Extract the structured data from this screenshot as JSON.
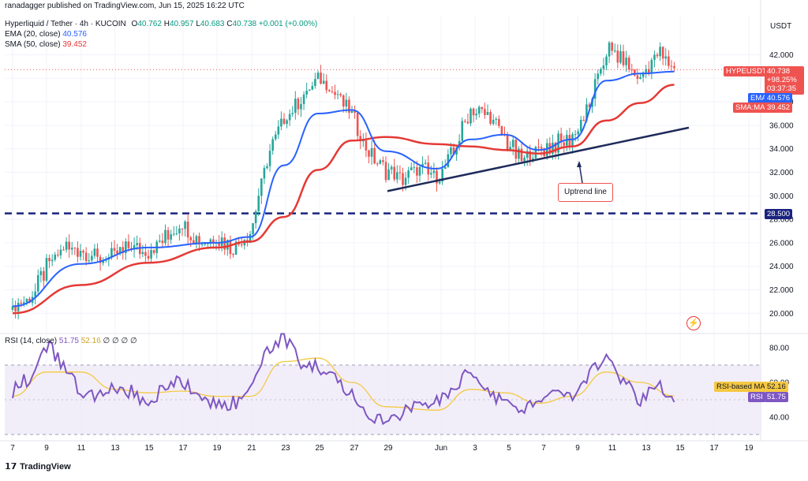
{
  "header": {
    "publisher": "ranadagger published on TradingView.com, Jun 15, 2025 16:22 UTC",
    "symbol_line": "Hyperliquid / Tether · 4h · KUCOIN",
    "ohlc": {
      "o_label": "O",
      "o": "40.762",
      "h_label": "H",
      "h": "40.957",
      "l_label": "L",
      "l": "40.683",
      "c_label": "C",
      "c": "40.738",
      "chg": "+0.001 (+0.00%)"
    },
    "ema_legend": {
      "label": "EMA (20, close)",
      "value": "40.576"
    },
    "sma_legend": {
      "label": "SMA (50, close)",
      "value": "39.452"
    },
    "rsi_legend": {
      "label": "RSI (14, close)",
      "v1": "51.75",
      "v2": "52.16",
      "rest": "∅ ∅ ∅ ∅"
    }
  },
  "price_axis": {
    "currency": "USDT",
    "ticks": [
      "42.000",
      "40.000",
      "38.000",
      "36.000",
      "34.000",
      "32.000",
      "30.000",
      "28.000",
      "26.000",
      "24.000",
      "22.000",
      "20.000"
    ]
  },
  "rsi_axis": {
    "ticks": [
      "80.00",
      "60.00",
      "40.00"
    ]
  },
  "x_axis": {
    "ticks": [
      "7",
      "9",
      "11",
      "13",
      "15",
      "17",
      "19",
      "21",
      "23",
      "25",
      "27",
      "29",
      "Jun",
      "3",
      "5",
      "7",
      "9",
      "11",
      "13",
      "15",
      "17",
      "19"
    ]
  },
  "labels": {
    "symbol_tag": "HYPEUSDT",
    "price_tag": "40.738",
    "pct_tag": "+98.25%",
    "time_tag": "03:37:35",
    "ema_tag": "EMA",
    "ema_value": "40.576",
    "sma_tag": "SMA:MA",
    "sma_value": "39.452",
    "support_value": "28.500",
    "uptrend_annotation": "Uptrend line",
    "rsi_ma_tag": "RSI-based MA",
    "rsi_ma_value": "52.16",
    "rsi_tag": "RSI",
    "rsi_value": "51.75",
    "footer": "TradingView"
  },
  "colors": {
    "up": "#26a69a",
    "down": "#ef5350",
    "ema": "#2962ff",
    "sma": "#e53935",
    "support": "#1a237e",
    "trend": "#1e2a5a",
    "rsi": "#7e57c2",
    "rsi_ma": "#f5c842",
    "band": "#ede7f6"
  },
  "chart_data": [
    {
      "type": "candlestick",
      "title": "Hyperliquid / Tether · 4h · KUCOIN",
      "ylim": [
        19,
        43.5
      ],
      "y_scale": "linear",
      "grid": true,
      "price_path": [
        [
          "May 7",
          20.3
        ],
        [
          "May 8",
          21.2
        ],
        [
          "May 9",
          23.8
        ],
        [
          "May 10",
          25.6
        ],
        [
          "May 11",
          25.4
        ],
        [
          "May 12",
          24.6
        ],
        [
          "May 13",
          24.8
        ],
        [
          "May 14",
          25.8
        ],
        [
          "May 15",
          25.2
        ],
        [
          "May 16",
          26.4
        ],
        [
          "May 17",
          27.6
        ],
        [
          "May 18",
          26.2
        ],
        [
          "May 19",
          26.5
        ],
        [
          "May 20",
          25.6
        ],
        [
          "May 21",
          26.6
        ],
        [
          "May 22",
          33.2
        ],
        [
          "May 23",
          36.8
        ],
        [
          "May 24",
          38.0
        ],
        [
          "May 25",
          40.0
        ],
        [
          "May 26",
          38.8
        ],
        [
          "May 27",
          36.8
        ],
        [
          "May 28",
          33.5
        ],
        [
          "May 29",
          32.0
        ],
        [
          "May 30",
          31.3
        ],
        [
          "May 31",
          32.3
        ],
        [
          "Jun 1",
          31.6
        ],
        [
          "Jun 2",
          33.6
        ],
        [
          "Jun 3",
          37.5
        ],
        [
          "Jun 4",
          37.0
        ],
        [
          "Jun 5",
          34.8
        ],
        [
          "Jun 6",
          33.0
        ],
        [
          "Jun 7",
          33.8
        ],
        [
          "Jun 8",
          34.3
        ],
        [
          "Jun 9",
          35.0
        ],
        [
          "Jun 10",
          37.5
        ],
        [
          "Jun 11",
          42.5
        ],
        [
          "Jun 12",
          41.5
        ],
        [
          "Jun 13",
          40.0
        ],
        [
          "Jun 14",
          42.2
        ],
        [
          "Jun 15",
          40.738
        ]
      ],
      "last": {
        "open": 40.762,
        "high": 40.957,
        "low": 40.683,
        "close": 40.738,
        "change": 0.001,
        "change_pct": "+0.00%"
      },
      "ema20": [
        [
          "May 7",
          20.6
        ],
        [
          "May 11",
          24.2
        ],
        [
          "May 15",
          25.6
        ],
        [
          "May 19",
          26.0
        ],
        [
          "May 21",
          26.5
        ],
        [
          "May 23",
          32.6
        ],
        [
          "May 25",
          37.0
        ],
        [
          "May 27",
          37.3
        ],
        [
          "May 29",
          33.8
        ],
        [
          "Jun 1",
          32.3
        ],
        [
          "Jun 3",
          34.8
        ],
        [
          "Jun 5",
          35.2
        ],
        [
          "Jun 7",
          33.9
        ],
        [
          "Jun 9",
          34.8
        ],
        [
          "Jun 11",
          39.8
        ],
        [
          "Jun 13",
          40.4
        ],
        [
          "Jun 15",
          40.576
        ]
      ],
      "sma50": [
        [
          "May 7",
          20.0
        ],
        [
          "May 11",
          22.4
        ],
        [
          "May 15",
          24.3
        ],
        [
          "May 19",
          25.6
        ],
        [
          "May 21",
          26.1
        ],
        [
          "May 23",
          28.2
        ],
        [
          "May 25",
          32.2
        ],
        [
          "May 27",
          34.7
        ],
        [
          "May 29",
          35.0
        ],
        [
          "Jun 1",
          34.4
        ],
        [
          "Jun 3",
          34.2
        ],
        [
          "Jun 5",
          33.9
        ],
        [
          "Jun 7",
          33.6
        ],
        [
          "Jun 9",
          34.2
        ],
        [
          "Jun 11",
          36.4
        ],
        [
          "Jun 13",
          37.9
        ],
        [
          "Jun 15",
          39.452
        ]
      ],
      "support_level": 28.5,
      "uptrend_line": {
        "start": [
          "May 29",
          30.4
        ],
        "end": [
          "Jun 16",
          35.8
        ]
      }
    },
    {
      "type": "line",
      "title": "RSI (14, close)",
      "ylim": [
        28,
        92
      ],
      "band": [
        30,
        70
      ],
      "rsi": [
        [
          "May 7",
          55
        ],
        [
          "May 8",
          63
        ],
        [
          "May 9",
          82
        ],
        [
          "May 10",
          70
        ],
        [
          "May 11",
          55
        ],
        [
          "May 12",
          50
        ],
        [
          "May 13",
          58
        ],
        [
          "May 14",
          55
        ],
        [
          "May 15",
          48
        ],
        [
          "May 16",
          58
        ],
        [
          "May 17",
          60
        ],
        [
          "May 18",
          52
        ],
        [
          "May 19",
          47
        ],
        [
          "May 20",
          48
        ],
        [
          "May 21",
          55
        ],
        [
          "May 22",
          78
        ],
        [
          "May 23",
          86
        ],
        [
          "May 24",
          72
        ],
        [
          "May 25",
          70
        ],
        [
          "May 26",
          62
        ],
        [
          "May 27",
          52
        ],
        [
          "May 28",
          40
        ],
        [
          "May 29",
          36
        ],
        [
          "May 30",
          44
        ],
        [
          "May 31",
          46
        ],
        [
          "Jun 1",
          48
        ],
        [
          "Jun 2",
          56
        ],
        [
          "Jun 3",
          66
        ],
        [
          "Jun 4",
          56
        ],
        [
          "Jun 5",
          48
        ],
        [
          "Jun 6",
          44
        ],
        [
          "Jun 7",
          48
        ],
        [
          "Jun 8",
          54
        ],
        [
          "Jun 9",
          52
        ],
        [
          "Jun 10",
          66
        ],
        [
          "Jun 11",
          74
        ],
        [
          "Jun 12",
          62
        ],
        [
          "Jun 13",
          48
        ],
        [
          "Jun 14",
          58
        ],
        [
          "Jun 15",
          51.75
        ]
      ],
      "rsi_ma": [
        [
          "May 7",
          52
        ],
        [
          "May 9",
          66
        ],
        [
          "May 11",
          66
        ],
        [
          "May 13",
          56
        ],
        [
          "May 15",
          54
        ],
        [
          "May 17",
          55
        ],
        [
          "May 19",
          52
        ],
        [
          "May 21",
          52
        ],
        [
          "May 23",
          72
        ],
        [
          "May 25",
          74
        ],
        [
          "May 27",
          60
        ],
        [
          "May 29",
          46
        ],
        [
          "Jun 1",
          44
        ],
        [
          "Jun 3",
          56
        ],
        [
          "Jun 5",
          54
        ],
        [
          "Jun 7",
          48
        ],
        [
          "Jun 9",
          52
        ],
        [
          "Jun 11",
          66
        ],
        [
          "Jun 13",
          60
        ],
        [
          "Jun 15",
          52.16
        ]
      ],
      "last_rsi": 51.75,
      "last_rsi_ma": 52.16
    }
  ]
}
